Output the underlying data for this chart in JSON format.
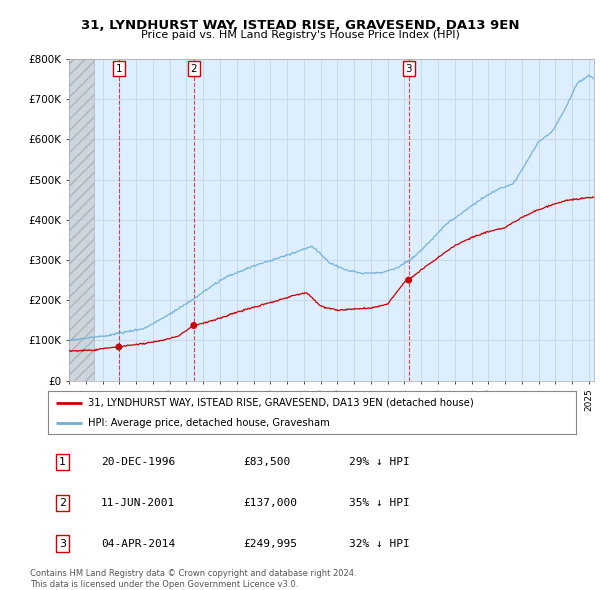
{
  "title": "31, LYNDHURST WAY, ISTEAD RISE, GRAVESEND, DA13 9EN",
  "subtitle": "Price paid vs. HM Land Registry's House Price Index (HPI)",
  "ylim": [
    0,
    800000
  ],
  "yticks": [
    0,
    100000,
    200000,
    300000,
    400000,
    500000,
    600000,
    700000,
    800000
  ],
  "ytick_labels": [
    "£0",
    "£100K",
    "£200K",
    "£300K",
    "£400K",
    "£500K",
    "£600K",
    "£700K",
    "£800K"
  ],
  "xlim_start": 1994.0,
  "xlim_end": 2025.3,
  "hatch_end": 1995.5,
  "hpi_color": "#6baed6",
  "price_color": "#cc0000",
  "vline_color": "#cc0000",
  "chart_bg": "#ddeeff",
  "sale_points": [
    {
      "year": 1996.97,
      "price": 83500,
      "label": "1"
    },
    {
      "year": 2001.44,
      "price": 137000,
      "label": "2"
    },
    {
      "year": 2014.25,
      "price": 249995,
      "label": "3"
    }
  ],
  "legend_items": [
    {
      "label": "31, LYNDHURST WAY, ISTEAD RISE, GRAVESEND, DA13 9EN (detached house)",
      "color": "#cc0000"
    },
    {
      "label": "HPI: Average price, detached house, Gravesham",
      "color": "#6baed6"
    }
  ],
  "table_rows": [
    {
      "num": "1",
      "date": "20-DEC-1996",
      "price": "£83,500",
      "pct": "29% ↓ HPI"
    },
    {
      "num": "2",
      "date": "11-JUN-2001",
      "price": "£137,000",
      "pct": "35% ↓ HPI"
    },
    {
      "num": "3",
      "date": "04-APR-2014",
      "price": "£249,995",
      "pct": "32% ↓ HPI"
    }
  ],
  "footer": "Contains HM Land Registry data © Crown copyright and database right 2024.\nThis data is licensed under the Open Government Licence v3.0.",
  "bg_color": "#ffffff",
  "grid_color": "#c8d8e8"
}
